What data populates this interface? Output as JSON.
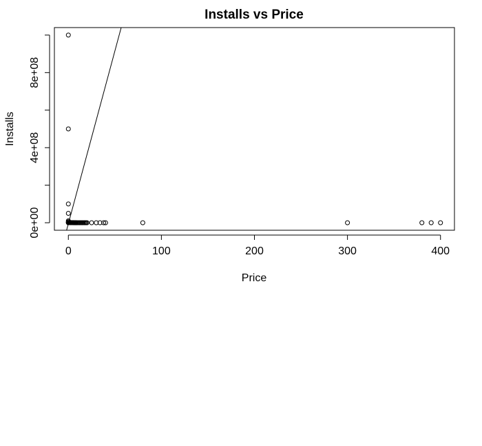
{
  "chart_data": {
    "type": "scatter",
    "title": "Installs vs Price",
    "xlabel": "Price",
    "ylabel": "Installs",
    "xlim": [
      -15,
      415
    ],
    "ylim": [
      -40000000,
      1040000000
    ],
    "x_ticks": [
      0,
      100,
      200,
      300,
      400
    ],
    "x_tick_labels": [
      "0",
      "100",
      "200",
      "300",
      "400"
    ],
    "y_ticks": [
      0,
      200000000,
      400000000,
      600000000,
      800000000,
      1000000000
    ],
    "y_tick_labels": [
      "0e+00",
      "",
      "4e+08",
      "",
      "8e+08",
      ""
    ],
    "grid": false,
    "series": [
      {
        "points": [
          [
            0,
            1000000000
          ],
          [
            0,
            500000000
          ],
          [
            0,
            100000000
          ],
          [
            0,
            50000000
          ],
          [
            0,
            10000000
          ],
          [
            0,
            5000000
          ],
          [
            0,
            1000000
          ],
          [
            0,
            500000
          ],
          [
            0,
            100000
          ],
          [
            0.99,
            1000000
          ],
          [
            1.49,
            500000
          ],
          [
            1.99,
            1000000
          ],
          [
            2.49,
            100000
          ],
          [
            2.99,
            1000000
          ],
          [
            3.49,
            100000
          ],
          [
            3.99,
            500000
          ],
          [
            4.49,
            100000
          ],
          [
            4.99,
            1000000
          ],
          [
            5.49,
            10000
          ],
          [
            5.99,
            100000
          ],
          [
            6.49,
            50000
          ],
          [
            6.99,
            100000
          ],
          [
            7.49,
            10000
          ],
          [
            7.99,
            50000
          ],
          [
            8.49,
            10000
          ],
          [
            8.99,
            10000
          ],
          [
            9.99,
            50000
          ],
          [
            10.99,
            10000
          ],
          [
            11.99,
            10000
          ],
          [
            12.99,
            5000
          ],
          [
            13.99,
            5000
          ],
          [
            14.99,
            10000
          ],
          [
            15.99,
            5000
          ],
          [
            16.99,
            5000
          ],
          [
            17.99,
            5000
          ],
          [
            18.99,
            1000
          ],
          [
            19.99,
            5000
          ],
          [
            24.99,
            1000
          ],
          [
            29.99,
            1000
          ],
          [
            33.99,
            1000
          ],
          [
            37.99,
            1000
          ],
          [
            39.99,
            500
          ],
          [
            79.99,
            1000
          ],
          [
            299.99,
            100
          ],
          [
            379.99,
            1000
          ],
          [
            389.99,
            1000
          ],
          [
            399.99,
            1000
          ]
        ]
      }
    ],
    "fit_line": {
      "intercept": -5000000,
      "slope": 18400000
    }
  }
}
